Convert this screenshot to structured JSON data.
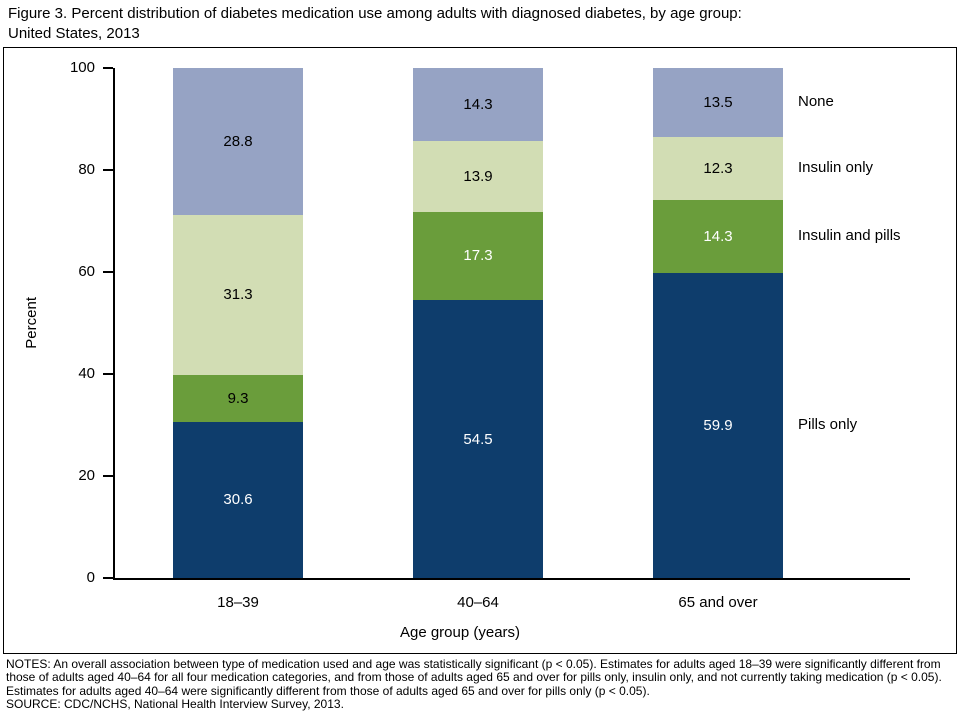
{
  "figure": {
    "title": "Figure 3. Percent distribution of diabetes medication use among adults with diagnosed diabetes, by age group:\nUnited States, 2013"
  },
  "chart_data": {
    "type": "bar",
    "stacked": true,
    "title": "Figure 3. Percent distribution of diabetes medication use among adults with diagnosed diabetes, by age group: United States, 2013",
    "categories": [
      "18–39",
      "40–64",
      "65 and over"
    ],
    "series": [
      {
        "name": "Pills only",
        "color": "#0e3d6c",
        "values": [
          30.6,
          54.5,
          59.9
        ],
        "label_colors": [
          "#ffffff",
          "#ffffff",
          "#ffffff"
        ]
      },
      {
        "name": "Insulin and pills",
        "color": "#6a9d3b",
        "values": [
          9.3,
          17.3,
          14.3
        ],
        "label_colors": [
          "#000000",
          "#ffffff",
          "#ffffff"
        ]
      },
      {
        "name": "Insulin only",
        "color": "#d2ddb4",
        "values": [
          31.3,
          13.9,
          12.3
        ],
        "label_colors": [
          "#000000",
          "#000000",
          "#000000"
        ]
      },
      {
        "name": "None",
        "color": "#96a3c4",
        "values": [
          28.8,
          14.3,
          13.5
        ],
        "label_colors": [
          "#000000",
          "#000000",
          "#000000"
        ]
      }
    ],
    "legend_order": [
      "None",
      "Insulin only",
      "Insulin and pills",
      "Pills only"
    ],
    "legend_position": "right",
    "xlabel": "Age group (years)",
    "ylabel": "Percent",
    "ylim": [
      0,
      100
    ],
    "yticks": [
      0,
      20,
      40,
      60,
      80,
      100
    ],
    "grid": false
  },
  "notes": {
    "notes_text": "NOTES: An overall association between type of medication used and age was statistically significant (p < 0.05). Estimates for adults aged 18–39 were significantly different from those of adults aged 40–64 for all four medication categories, and from those of adults aged 65 and over for pills only, insulin only, and not currently taking medication (p < 0.05). Estimates for adults aged 40–64 were significantly different from those of adults aged 65 and over for pills only (p < 0.05).",
    "source_text": "SOURCE: CDC/NCHS, National Health Interview Survey, 2013."
  }
}
